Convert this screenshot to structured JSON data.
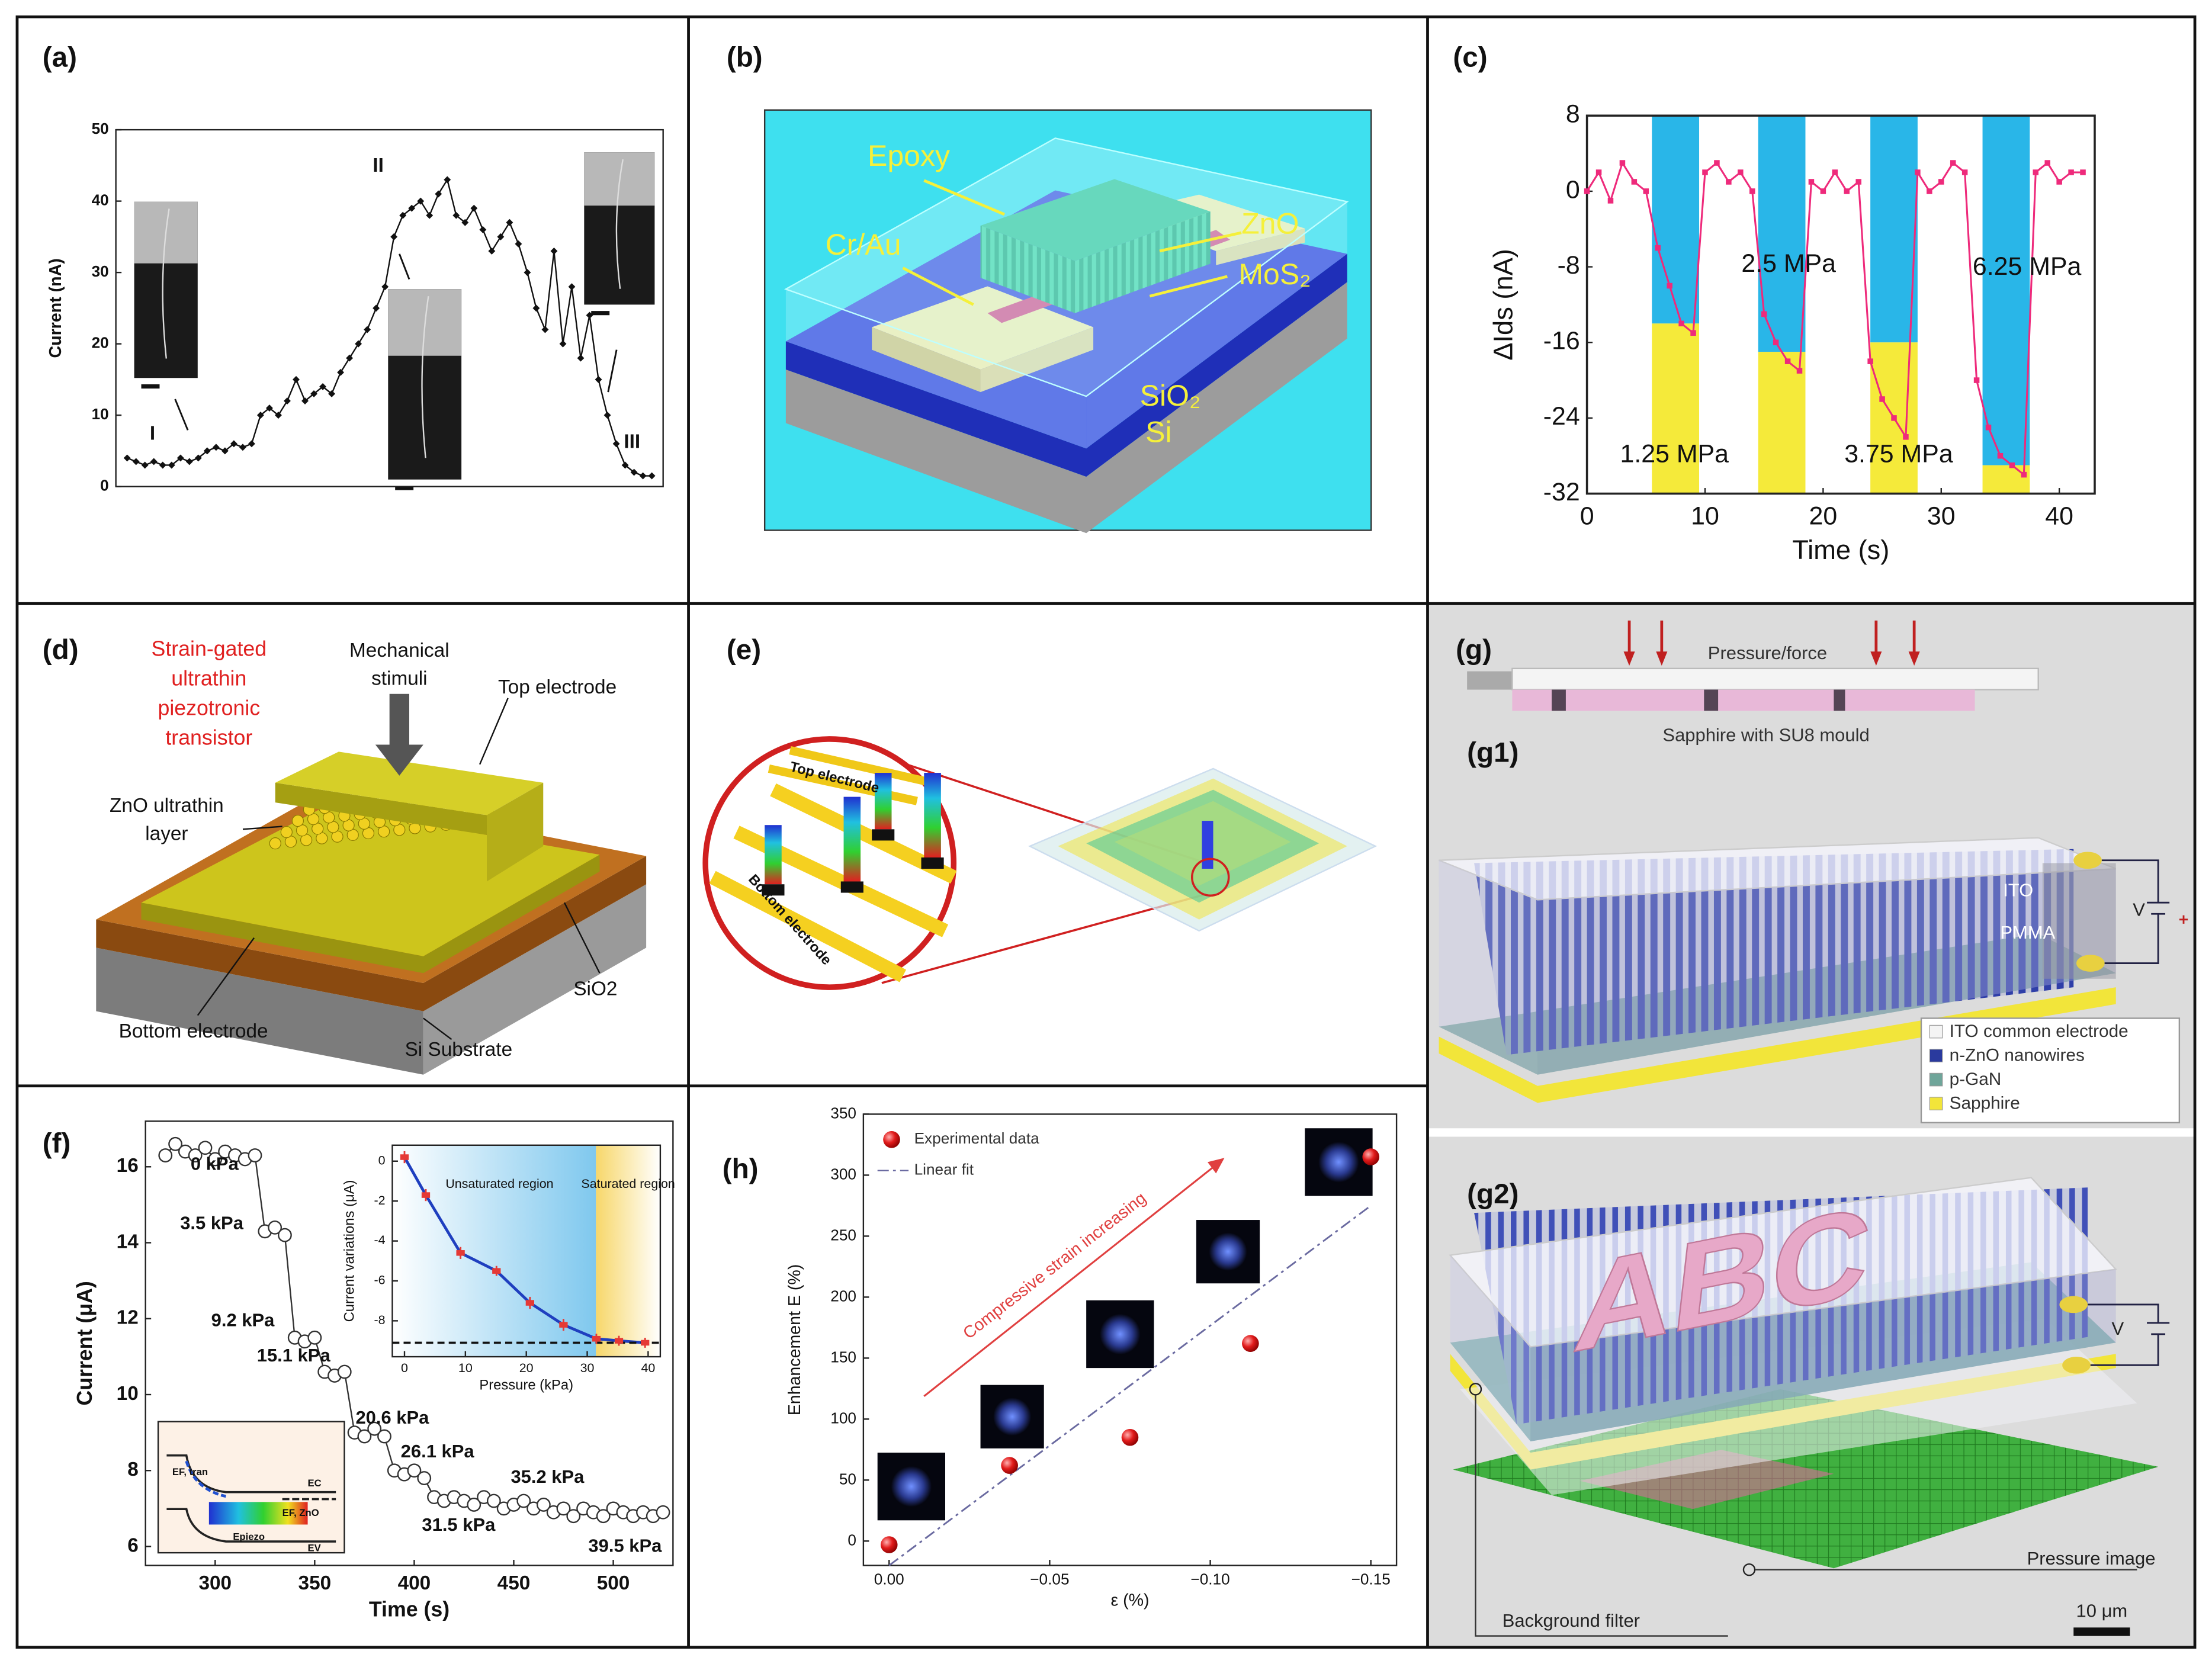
{
  "panel_labels": [
    "(a)",
    "(b)",
    "(c)",
    "(d)",
    "(e)",
    "(f)",
    "(g)",
    "(g1)",
    "(g2)",
    "(h)"
  ],
  "chart_data": [
    {
      "type": "line",
      "ylabel": "Current (nA)",
      "ylim": [
        0,
        50
      ],
      "yticks": [
        0,
        10,
        20,
        30,
        40,
        50
      ],
      "color": "#111111",
      "values": [
        4,
        3.5,
        3,
        3.5,
        3,
        3,
        4,
        3.5,
        4,
        5,
        5.5,
        5,
        6,
        5.5,
        6,
        10,
        11,
        10,
        12,
        15,
        12,
        13,
        14,
        13,
        16,
        18,
        20,
        22,
        25,
        28,
        35,
        38,
        39,
        40,
        38,
        41,
        43,
        38,
        37,
        39,
        36,
        33,
        35,
        37,
        34,
        30,
        25,
        22,
        33,
        20,
        28,
        18,
        24,
        15,
        10,
        6,
        3,
        2,
        1.5,
        1.5
      ],
      "annotations": [
        "I",
        "II",
        "III"
      ]
    },
    {
      "type": "line",
      "xlabel": "Time (s)",
      "ylabel": "ΔIds (nA)",
      "xlim": [
        0,
        43
      ],
      "ylim": [
        -32,
        8
      ],
      "xticks": [
        0,
        10,
        20,
        30,
        40
      ],
      "yticks": [
        -32,
        -24,
        -16,
        -8,
        0,
        8
      ],
      "color": "#ee2a7b",
      "x": [
        0,
        1,
        2,
        3,
        4,
        5,
        6,
        7,
        8,
        9,
        10,
        11,
        12,
        13,
        14,
        15,
        16,
        17,
        18,
        19,
        20,
        21,
        22,
        23,
        24,
        25,
        26,
        27,
        28,
        29,
        30,
        31,
        32,
        33,
        34,
        35,
        36,
        37,
        38,
        39,
        40,
        41,
        42
      ],
      "values": [
        0,
        2,
        -1,
        3,
        1,
        0,
        -6,
        -10,
        -14,
        -15,
        2,
        3,
        1,
        2,
        0,
        -13,
        -16,
        -18,
        -19,
        1,
        0,
        2,
        0,
        1,
        -18,
        -22,
        -24,
        -26,
        2,
        0,
        1,
        3,
        2,
        -20,
        -25,
        -28,
        -29,
        -30,
        2,
        3,
        1,
        2,
        2
      ],
      "bands": {
        "x0": [
          5.5,
          14.5,
          24,
          33.5
        ],
        "x1": [
          9.5,
          18.5,
          28,
          37.5
        ],
        "level": [
          -14,
          -17,
          -16,
          -29
        ],
        "labels": [
          "1.25 MPa",
          "2.5 MPa",
          "3.75 MPa",
          "6.25 MPa"
        ],
        "top_color": "#29b6e8",
        "bottom_color": "#f5ea3a"
      }
    },
    {
      "type": "line",
      "xlabel": "Time (s)",
      "ylabel": "Current (μA)",
      "xlim": [
        265,
        530
      ],
      "ylim": [
        5.5,
        17.2
      ],
      "xticks": [
        300,
        350,
        400,
        450,
        500
      ],
      "yticks": [
        6,
        8,
        10,
        12,
        14,
        16
      ],
      "color": "#333333",
      "x": [
        275,
        280,
        285,
        290,
        295,
        300,
        305,
        310,
        315,
        320,
        325,
        330,
        335,
        340,
        345,
        350,
        355,
        360,
        365,
        370,
        375,
        380,
        385,
        390,
        395,
        400,
        405,
        410,
        415,
        420,
        425,
        430,
        435,
        440,
        445,
        450,
        455,
        460,
        465,
        470,
        475,
        480,
        485,
        490,
        495,
        500,
        505,
        510,
        515,
        520,
        525
      ],
      "values": [
        16.3,
        16.6,
        16.4,
        16.3,
        16.5,
        16.2,
        16.4,
        16.3,
        16.2,
        16.3,
        14.3,
        14.4,
        14.2,
        11.5,
        11.4,
        11.5,
        10.6,
        10.5,
        10.6,
        9.0,
        8.9,
        9.1,
        8.9,
        8.0,
        7.9,
        8.0,
        7.8,
        7.3,
        7.2,
        7.3,
        7.2,
        7.1,
        7.3,
        7.2,
        7.0,
        7.1,
        7.2,
        7.0,
        7.1,
        6.9,
        7.0,
        6.8,
        7.0,
        6.9,
        6.8,
        7.0,
        6.9,
        6.8,
        6.9,
        6.8,
        6.9
      ],
      "annotations": [
        "0 kPa",
        "3.5 kPa",
        "9.2 kPa",
        "15.1 kPa",
        "20.6 kPa",
        "26.1 kPa",
        "31.5 kPa",
        "35.2 kPa",
        "39.5 kPa"
      ],
      "band_diagram": [
        "EF, tran",
        "EC",
        "EF, ZnO",
        "Epiezo",
        "EV"
      ]
    },
    {
      "type": "errorbar",
      "xlabel": "Pressure (kPa)",
      "ylabel": "Current variations (μA)",
      "xlim": [
        -2,
        42
      ],
      "ylim": [
        -9.8,
        0.8
      ],
      "xticks": [
        0,
        10,
        20,
        30,
        40
      ],
      "yticks": [
        -8,
        -6,
        -4,
        -2,
        0
      ],
      "color": "#e53935",
      "fit_color": "#1f3fbf",
      "x": [
        0,
        3.5,
        9.2,
        15.1,
        20.6,
        26.1,
        31.5,
        35.2,
        39.5
      ],
      "values": [
        0.2,
        -1.7,
        -4.6,
        -5.5,
        -7.1,
        -8.2,
        -8.9,
        -9.0,
        -9.1
      ],
      "errors": [
        0.3,
        0.3,
        0.3,
        0.25,
        0.3,
        0.3,
        0.25,
        0.25,
        0.25
      ],
      "reference": -9.1,
      "regions": [
        "Unsaturated region",
        "Saturated region"
      ]
    },
    {
      "type": "scatter",
      "xlabel": "ε (%)",
      "ylabel": "Enhancement E (%)",
      "xlim": [
        0.008,
        -0.158
      ],
      "ylim": [
        -20,
        350
      ],
      "xticks": [
        {
          "value": 0,
          "label": "0.00"
        },
        {
          "value": -0.05,
          "label": "−0.05"
        },
        {
          "value": -0.1,
          "label": "−0.10"
        },
        {
          "value": -0.15,
          "label": "−0.15"
        }
      ],
      "yticks": [
        0,
        50,
        100,
        150,
        200,
        250,
        300,
        350
      ],
      "series": [
        {
          "name": "Experimental data",
          "color": "#e21b1b",
          "x": [
            0,
            -0.0375,
            -0.075,
            -0.1125,
            -0.15
          ],
          "values": [
            -3,
            62,
            85,
            162,
            315
          ]
        },
        {
          "name": "Linear fit",
          "color": "#6a6aa0",
          "x": [
            0,
            -0.15
          ],
          "values": [
            -20,
            275
          ]
        }
      ],
      "annotation": "Compressive strain increasing",
      "legend": "upper left"
    }
  ],
  "diagram_b": {
    "labels": [
      "Epoxy",
      "Cr/Au",
      "ZnO",
      "MoS₂",
      "SiO₂",
      "Si"
    ]
  },
  "diagram_d": {
    "title": [
      "Strain-gated",
      "ultrathin",
      "piezotronic",
      "transistor"
    ],
    "stimuli": [
      "Mechanical",
      "stimuli"
    ],
    "layer": [
      "ZnO ultrathin",
      "layer"
    ],
    "labels": [
      "Top electrode",
      "Bottom electrode",
      "SiO2",
      "Si Substrate"
    ]
  },
  "diagram_e": {
    "labels": [
      "Top electrode",
      "Bottom electrode"
    ]
  },
  "diagram_g": {
    "labels": [
      "Pressure/force",
      "Sapphire with SU8 mould",
      "ITO",
      "PMMA",
      "V"
    ],
    "legend": [
      {
        "name": "ITO common electrode",
        "color": "#f4f4f4"
      },
      {
        "name": "n-ZnO nanowires",
        "color": "#2a3a9e"
      },
      {
        "name": "p-GaN",
        "color": "#6fa59a"
      },
      {
        "name": "Sapphire",
        "color": "#f2e53a"
      }
    ],
    "letters": "ABC",
    "g2_labels": [
      "V",
      "Pressure image",
      "Background filter",
      "10 μm"
    ]
  }
}
